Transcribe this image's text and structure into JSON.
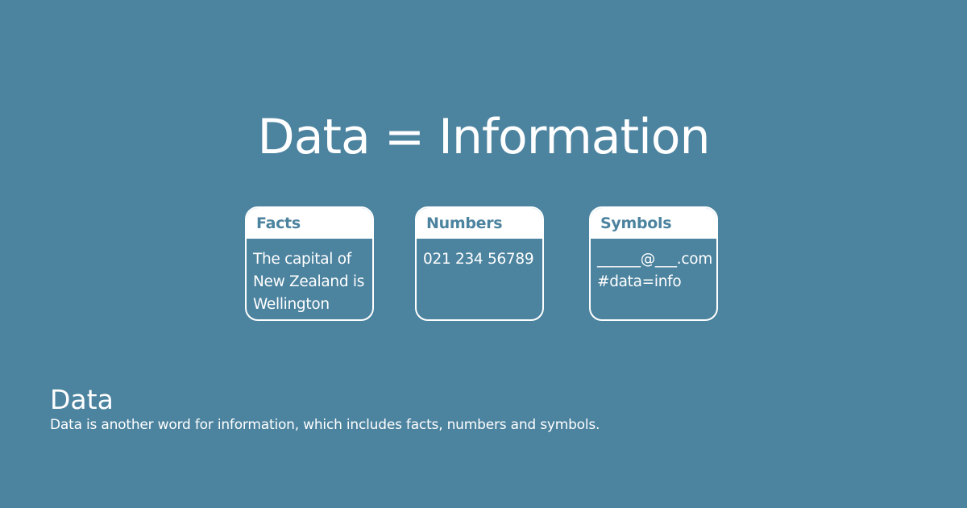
{
  "headline": "Data = Information",
  "cards": [
    {
      "title": "Facts",
      "body": "The capital of\nNew Zealand is\nWellington"
    },
    {
      "title": "Numbers",
      "body": "021 234 56789"
    },
    {
      "title": "Symbols",
      "body": "______@___.com\n#data=info"
    }
  ],
  "caption": {
    "title": "Data",
    "text": "Data is another word for information, which includes facts, numbers and symbols."
  },
  "colors": {
    "background": "#4c839f",
    "foreground": "#ffffff"
  }
}
